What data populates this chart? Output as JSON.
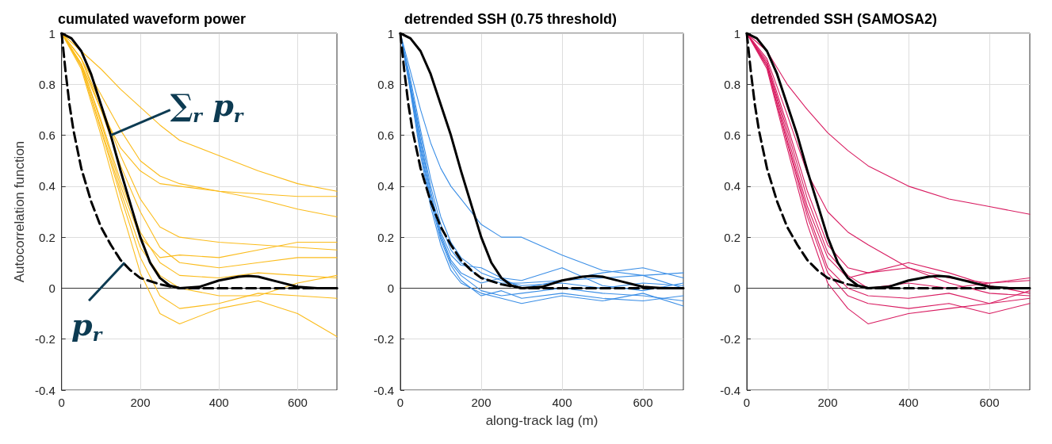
{
  "chart_data": [
    {
      "type": "line",
      "title": "cumulated waveform power",
      "ylabel": "Autocorrelation function",
      "xlim": [
        0,
        700
      ],
      "xticks": [
        0,
        200,
        400,
        600
      ],
      "ylim": [
        -0.4,
        1
      ],
      "yticks": [
        -0.4,
        -0.2,
        0,
        0.2,
        0.4,
        0.6,
        0.8,
        1
      ],
      "grid": true,
      "marker": "none",
      "annotations": [
        {
          "text": "∑$_{r}$ p$_{r}$",
          "x": 125,
          "y": 0.6
        },
        {
          "text": "p$_{r}$",
          "x": 160,
          "y": 0.1
        }
      ],
      "series": [
        {
          "color": "#fbbc1c",
          "x": [
            0,
            50,
            100,
            150,
            200,
            250,
            300,
            400,
            500,
            600,
            700
          ],
          "values": [
            1,
            0.93,
            0.86,
            0.78,
            0.71,
            0.64,
            0.58,
            0.52,
            0.46,
            0.41,
            0.38
          ]
        },
        {
          "color": "#fbbc1c",
          "x": [
            0,
            50,
            100,
            150,
            200,
            250,
            300,
            400,
            500,
            600,
            700
          ],
          "values": [
            1,
            0.9,
            0.76,
            0.62,
            0.5,
            0.44,
            0.41,
            0.38,
            0.35,
            0.31,
            0.28
          ]
        },
        {
          "color": "#fbbc1c",
          "x": [
            0,
            50,
            100,
            150,
            200,
            250,
            300,
            400,
            500,
            600,
            700
          ],
          "values": [
            1,
            0.88,
            0.7,
            0.55,
            0.46,
            0.41,
            0.4,
            0.38,
            0.37,
            0.36,
            0.36
          ]
        },
        {
          "color": "#fbbc1c",
          "x": [
            0,
            50,
            100,
            150,
            200,
            250,
            300,
            400,
            500,
            600,
            700
          ],
          "values": [
            1,
            0.9,
            0.72,
            0.52,
            0.35,
            0.24,
            0.2,
            0.18,
            0.17,
            0.16,
            0.15
          ]
        },
        {
          "color": "#fbbc1c",
          "x": [
            0,
            50,
            100,
            150,
            200,
            250,
            300,
            400,
            500,
            600,
            700
          ],
          "values": [
            1,
            0.9,
            0.7,
            0.48,
            0.3,
            0.16,
            0.1,
            0.08,
            0.1,
            0.12,
            0.12
          ]
        },
        {
          "color": "#fbbc1c",
          "x": [
            0,
            50,
            100,
            150,
            200,
            250,
            300,
            400,
            500,
            600,
            700
          ],
          "values": [
            1,
            0.88,
            0.66,
            0.42,
            0.22,
            0.1,
            0.05,
            0.04,
            0.06,
            0.05,
            0.04
          ]
        },
        {
          "color": "#fbbc1c",
          "x": [
            0,
            50,
            100,
            150,
            200,
            250,
            300,
            400,
            500,
            600,
            700
          ],
          "values": [
            1,
            0.87,
            0.62,
            0.36,
            0.12,
            -0.03,
            -0.08,
            -0.06,
            -0.02,
            -0.03,
            -0.04
          ]
        },
        {
          "color": "#fbbc1c",
          "x": [
            0,
            50,
            100,
            150,
            200,
            250,
            300,
            400,
            500,
            600,
            700
          ],
          "values": [
            1,
            0.86,
            0.6,
            0.32,
            0.06,
            -0.1,
            -0.14,
            -0.08,
            -0.05,
            -0.1,
            -0.19
          ]
        },
        {
          "color": "#fbbc1c",
          "x": [
            0,
            50,
            100,
            150,
            200,
            250,
            300,
            400,
            500,
            600,
            700
          ],
          "values": [
            1,
            0.87,
            0.63,
            0.38,
            0.16,
            0.05,
            0,
            -0.03,
            -0.03,
            0.02,
            0.05
          ]
        },
        {
          "color": "#fbbc1c",
          "x": [
            0,
            50,
            100,
            150,
            200,
            250,
            300,
            400,
            500,
            600,
            700
          ],
          "values": [
            1,
            0.88,
            0.65,
            0.4,
            0.2,
            0.12,
            0.13,
            0.12,
            0.15,
            0.18,
            0.18
          ]
        },
        {
          "color": "#000000",
          "line_style": "solid",
          "x": [
            0,
            25,
            50,
            75,
            100,
            125,
            150,
            175,
            200,
            225,
            250,
            275,
            300,
            350,
            400,
            450,
            475,
            500,
            550,
            600,
            650,
            700
          ],
          "values": [
            1,
            0.98,
            0.93,
            0.84,
            0.72,
            0.6,
            0.46,
            0.33,
            0.2,
            0.1,
            0.04,
            0.01,
            0,
            0.005,
            0.03,
            0.045,
            0.048,
            0.045,
            0.025,
            0.005,
            0,
            0
          ]
        },
        {
          "color": "#000000",
          "line_style": "dashed",
          "x": [
            0,
            10,
            20,
            30,
            50,
            75,
            100,
            125,
            150,
            175,
            200,
            250,
            300,
            700
          ],
          "values": [
            1,
            0.85,
            0.72,
            0.62,
            0.47,
            0.34,
            0.24,
            0.17,
            0.11,
            0.07,
            0.04,
            0.015,
            0,
            0
          ]
        }
      ]
    },
    {
      "type": "line",
      "title": "detrended SSH (0.75 threshold)",
      "xlabel": "along-track lag (m)",
      "xlim": [
        0,
        700
      ],
      "xticks": [
        0,
        200,
        400,
        600
      ],
      "ylim": [
        -0.4,
        1
      ],
      "yticks": [
        -0.4,
        -0.2,
        0,
        0.2,
        0.4,
        0.6,
        0.8,
        1
      ],
      "grid": true,
      "marker": "none",
      "series": [
        {
          "color": "#3a8ee6",
          "x": [
            0,
            25,
            50,
            75,
            100,
            125,
            150,
            200,
            250,
            300,
            400,
            500,
            600,
            700
          ],
          "values": [
            1,
            0.85,
            0.7,
            0.57,
            0.47,
            0.4,
            0.35,
            0.25,
            0.2,
            0.2,
            0.13,
            0.07,
            0.05,
            0
          ]
        },
        {
          "color": "#3a8ee6",
          "x": [
            0,
            25,
            50,
            75,
            100,
            125,
            150,
            200,
            250,
            300,
            400,
            500,
            600,
            700
          ],
          "values": [
            1,
            0.8,
            0.6,
            0.4,
            0.25,
            0.15,
            0.1,
            0.04,
            0.02,
            0.02,
            0.03,
            0.04,
            0.05,
            0.06
          ]
        },
        {
          "color": "#3a8ee6",
          "x": [
            0,
            25,
            50,
            75,
            100,
            125,
            150,
            200,
            250,
            300,
            400,
            500,
            600,
            700
          ],
          "values": [
            1,
            0.78,
            0.55,
            0.35,
            0.2,
            0.1,
            0.05,
            -0.01,
            -0.03,
            -0.02,
            0,
            -0.02,
            -0.03,
            -0.05
          ]
        },
        {
          "color": "#3a8ee6",
          "x": [
            0,
            25,
            50,
            75,
            100,
            125,
            150,
            200,
            250,
            300,
            400,
            500,
            600,
            700
          ],
          "values": [
            1,
            0.8,
            0.58,
            0.38,
            0.22,
            0.13,
            0.09,
            0.08,
            0.04,
            0,
            0.03,
            0.06,
            0.08,
            0.04
          ]
        },
        {
          "color": "#3a8ee6",
          "x": [
            0,
            25,
            50,
            75,
            100,
            125,
            150,
            200,
            250,
            300,
            400,
            500,
            600,
            700
          ],
          "values": [
            1,
            0.77,
            0.52,
            0.32,
            0.17,
            0.07,
            0.02,
            -0.02,
            -0.04,
            -0.06,
            -0.03,
            -0.05,
            -0.02,
            -0.07
          ]
        },
        {
          "color": "#3a8ee6",
          "x": [
            0,
            25,
            50,
            75,
            100,
            125,
            150,
            200,
            250,
            300,
            400,
            500,
            600,
            700
          ],
          "values": [
            1,
            0.82,
            0.62,
            0.43,
            0.28,
            0.18,
            0.12,
            0.06,
            0.03,
            0.01,
            0.02,
            0,
            0.02,
            0.01
          ]
        },
        {
          "color": "#3a8ee6",
          "x": [
            0,
            25,
            50,
            75,
            100,
            125,
            150,
            200,
            250,
            300,
            400,
            500,
            600,
            700
          ],
          "values": [
            1,
            0.79,
            0.57,
            0.37,
            0.21,
            0.11,
            0.06,
            0.02,
            0.04,
            0.03,
            0.08,
            0.01,
            -0.01,
            0.02
          ]
        },
        {
          "color": "#3a8ee6",
          "x": [
            0,
            25,
            50,
            75,
            100,
            125,
            150,
            200,
            250,
            300,
            400,
            500,
            600,
            700
          ],
          "values": [
            1,
            0.78,
            0.54,
            0.34,
            0.19,
            0.09,
            0.03,
            -0.03,
            -0.01,
            -0.04,
            -0.02,
            -0.04,
            -0.05,
            -0.03
          ]
        },
        {
          "color": "#000000",
          "line_style": "solid",
          "x": [
            0,
            25,
            50,
            75,
            100,
            125,
            150,
            175,
            200,
            225,
            250,
            275,
            300,
            350,
            400,
            450,
            475,
            500,
            550,
            600,
            650,
            700
          ],
          "values": [
            1,
            0.98,
            0.93,
            0.84,
            0.72,
            0.6,
            0.46,
            0.33,
            0.2,
            0.1,
            0.04,
            0.01,
            0,
            0.005,
            0.03,
            0.045,
            0.048,
            0.045,
            0.025,
            0.005,
            0,
            0
          ]
        },
        {
          "color": "#000000",
          "line_style": "dashed",
          "x": [
            0,
            10,
            20,
            30,
            50,
            75,
            100,
            125,
            150,
            175,
            200,
            250,
            300,
            700
          ],
          "values": [
            1,
            0.85,
            0.72,
            0.62,
            0.47,
            0.34,
            0.24,
            0.17,
            0.11,
            0.07,
            0.04,
            0.015,
            0,
            0
          ]
        }
      ]
    },
    {
      "type": "line",
      "title": "detrended SSH (SAMOSA2)",
      "xlim": [
        0,
        700
      ],
      "xticks": [
        0,
        200,
        400,
        600
      ],
      "ylim": [
        -0.4,
        1
      ],
      "yticks": [
        -0.4,
        -0.2,
        0,
        0.2,
        0.4,
        0.6,
        0.8,
        1
      ],
      "grid": true,
      "marker": "none",
      "series": [
        {
          "color": "#d81b60",
          "x": [
            0,
            50,
            100,
            150,
            200,
            250,
            300,
            400,
            500,
            600,
            700
          ],
          "values": [
            1,
            0.93,
            0.8,
            0.7,
            0.61,
            0.54,
            0.48,
            0.4,
            0.35,
            0.32,
            0.29
          ]
        },
        {
          "color": "#d81b60",
          "x": [
            0,
            50,
            100,
            150,
            200,
            250,
            300,
            400,
            500,
            600,
            700
          ],
          "values": [
            1,
            0.9,
            0.68,
            0.45,
            0.3,
            0.22,
            0.17,
            0.08,
            0.02,
            -0.02,
            -0.03
          ]
        },
        {
          "color": "#d81b60",
          "x": [
            0,
            50,
            100,
            150,
            200,
            250,
            300,
            400,
            500,
            600,
            700
          ],
          "values": [
            1,
            0.88,
            0.6,
            0.32,
            0.12,
            0.04,
            0.06,
            0.08,
            0.04,
            0.02,
            0.03
          ]
        },
        {
          "color": "#d81b60",
          "x": [
            0,
            50,
            100,
            150,
            200,
            250,
            300,
            400,
            500,
            600,
            700
          ],
          "values": [
            1,
            0.86,
            0.55,
            0.25,
            0.02,
            -0.08,
            -0.14,
            -0.1,
            -0.08,
            -0.06,
            -0.04
          ]
        },
        {
          "color": "#d81b60",
          "x": [
            0,
            50,
            100,
            150,
            200,
            250,
            300,
            400,
            500,
            600,
            700
          ],
          "values": [
            1,
            0.87,
            0.58,
            0.3,
            0.08,
            0,
            -0.03,
            -0.04,
            -0.02,
            -0.06,
            -0.01
          ]
        },
        {
          "color": "#d81b60",
          "x": [
            0,
            50,
            100,
            150,
            200,
            250,
            300,
            400,
            500,
            600,
            700
          ],
          "values": [
            1,
            0.88,
            0.62,
            0.35,
            0.14,
            0.05,
            0,
            0.02,
            0,
            0.02,
            0.04
          ]
        },
        {
          "color": "#d81b60",
          "x": [
            0,
            50,
            100,
            150,
            200,
            250,
            300,
            400,
            500,
            600,
            700
          ],
          "values": [
            1,
            0.87,
            0.57,
            0.28,
            0.06,
            -0.03,
            -0.06,
            -0.08,
            -0.06,
            -0.1,
            -0.06
          ]
        },
        {
          "color": "#d81b60",
          "x": [
            0,
            50,
            100,
            150,
            200,
            250,
            300,
            400,
            500,
            600,
            700
          ],
          "values": [
            1,
            0.89,
            0.64,
            0.38,
            0.17,
            0.08,
            0.06,
            0.1,
            0.06,
            0.01,
            -0.02
          ]
        },
        {
          "color": "#000000",
          "line_style": "solid",
          "x": [
            0,
            25,
            50,
            75,
            100,
            125,
            150,
            175,
            200,
            225,
            250,
            275,
            300,
            350,
            400,
            450,
            475,
            500,
            550,
            600,
            650,
            700
          ],
          "values": [
            1,
            0.98,
            0.93,
            0.84,
            0.72,
            0.6,
            0.46,
            0.33,
            0.2,
            0.1,
            0.04,
            0.01,
            0,
            0.005,
            0.03,
            0.045,
            0.048,
            0.045,
            0.025,
            0.005,
            0,
            0
          ]
        },
        {
          "color": "#000000",
          "line_style": "dashed",
          "x": [
            0,
            10,
            20,
            30,
            50,
            75,
            100,
            125,
            150,
            175,
            200,
            250,
            300,
            700
          ],
          "values": [
            1,
            0.85,
            0.72,
            0.62,
            0.47,
            0.34,
            0.24,
            0.17,
            0.11,
            0.07,
            0.04,
            0.015,
            0,
            0
          ]
        }
      ]
    }
  ]
}
